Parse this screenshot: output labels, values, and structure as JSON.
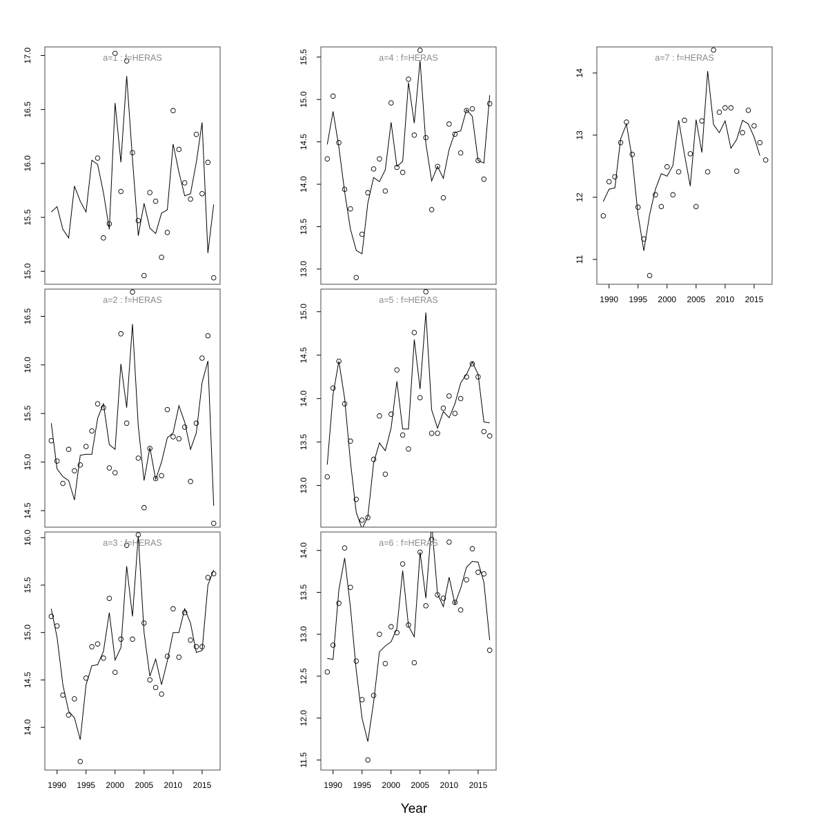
{
  "figure": {
    "x_axis_title": "Year"
  },
  "chart_data": [
    {
      "type": "line",
      "title": "a=1  :  f=HERAS",
      "ylim": [
        14.88,
        17.08
      ],
      "y_ticks": [
        15.0,
        15.5,
        16.0,
        16.5,
        17.0
      ],
      "x_ticks": [],
      "x": [
        1989,
        1990,
        1991,
        1992,
        1993,
        1994,
        1995,
        1996,
        1997,
        1998,
        1999,
        2000,
        2001,
        2002,
        2003,
        2004,
        2005,
        2006,
        2007,
        2008,
        2009,
        2010,
        2011,
        2012,
        2013,
        2014,
        2015,
        2016,
        2017
      ],
      "series": [
        {
          "role": "fitted",
          "values": [
            15.55,
            15.6,
            15.39,
            15.31,
            15.79,
            15.65,
            15.55,
            16.03,
            15.99,
            15.73,
            15.39,
            16.56,
            16.01,
            16.81,
            16.04,
            15.33,
            15.63,
            15.4,
            15.35,
            15.54,
            15.57,
            16.18,
            15.92,
            15.7,
            15.72,
            16.01,
            16.38,
            15.17,
            15.62
          ]
        },
        {
          "role": "observed",
          "values": [
            null,
            null,
            null,
            null,
            null,
            null,
            null,
            null,
            16.05,
            15.31,
            15.44,
            17.02,
            15.74,
            16.95,
            16.1,
            15.47,
            14.96,
            15.73,
            15.65,
            15.13,
            15.36,
            16.49,
            16.13,
            15.82,
            15.67,
            16.27,
            15.72,
            16.01,
            14.94
          ]
        }
      ]
    },
    {
      "type": "line",
      "title": "a=2  :  f=HERAS",
      "ylim": [
        14.33,
        16.78
      ],
      "y_ticks": [
        14.5,
        15.0,
        15.5,
        16.0,
        16.5
      ],
      "x_ticks": [],
      "x": [
        1989,
        1990,
        1991,
        1992,
        1993,
        1994,
        1995,
        1996,
        1997,
        1998,
        1999,
        2000,
        2001,
        2002,
        2003,
        2004,
        2005,
        2006,
        2007,
        2008,
        2009,
        2010,
        2011,
        2012,
        2013,
        2014,
        2015,
        2016,
        2017
      ],
      "series": [
        {
          "role": "fitted",
          "values": [
            15.4,
            14.93,
            14.85,
            14.81,
            14.61,
            15.07,
            15.08,
            15.08,
            15.45,
            15.6,
            15.18,
            15.13,
            16.01,
            15.56,
            16.42,
            15.37,
            14.81,
            15.15,
            14.82,
            15.0,
            15.25,
            15.3,
            15.58,
            15.41,
            15.13,
            15.3,
            15.82,
            16.04,
            14.55
          ]
        },
        {
          "role": "observed",
          "values": [
            15.22,
            15.01,
            14.78,
            15.13,
            14.91,
            14.97,
            15.16,
            15.32,
            15.6,
            15.56,
            14.94,
            14.89,
            16.32,
            15.4,
            16.75,
            15.04,
            14.53,
            15.14,
            14.83,
            14.86,
            15.54,
            15.26,
            15.24,
            15.36,
            14.8,
            15.4,
            16.07,
            16.3,
            14.37
          ]
        }
      ]
    },
    {
      "type": "line",
      "title": "a=3  :  f=HERAS",
      "ylim": [
        13.55,
        16.06
      ],
      "y_ticks": [
        14.0,
        14.5,
        15.0,
        15.5,
        16.0
      ],
      "x_ticks": [
        1990,
        1995,
        2000,
        2005,
        2010,
        2015
      ],
      "x": [
        1989,
        1990,
        1991,
        1992,
        1993,
        1994,
        1995,
        1996,
        1997,
        1998,
        1999,
        2000,
        2001,
        2002,
        2003,
        2004,
        2005,
        2006,
        2007,
        2008,
        2009,
        2010,
        2011,
        2012,
        2013,
        2014,
        2015,
        2016,
        2017
      ],
      "series": [
        {
          "role": "fitted",
          "values": [
            15.25,
            14.95,
            14.45,
            14.17,
            14.1,
            13.87,
            14.45,
            14.65,
            14.66,
            14.8,
            15.21,
            14.71,
            14.84,
            15.7,
            15.17,
            16.02,
            15.0,
            14.54,
            14.72,
            14.45,
            14.7,
            15.0,
            15.0,
            15.25,
            15.1,
            14.79,
            14.81,
            15.5,
            15.66
          ]
        },
        {
          "role": "observed",
          "values": [
            15.17,
            15.07,
            14.34,
            14.13,
            14.3,
            13.64,
            14.52,
            14.85,
            14.88,
            14.73,
            15.36,
            14.58,
            14.93,
            15.92,
            14.93,
            16.03,
            15.1,
            14.5,
            14.42,
            14.35,
            14.75,
            15.25,
            14.74,
            15.21,
            14.92,
            14.85,
            14.85,
            15.58,
            15.62
          ]
        }
      ]
    },
    {
      "type": "line",
      "title": "a=4  :  f=HERAS",
      "ylim": [
        12.82,
        15.62
      ],
      "y_ticks": [
        13.0,
        13.5,
        14.0,
        14.5,
        15.0,
        15.5
      ],
      "x_ticks": [],
      "x": [
        1989,
        1990,
        1991,
        1992,
        1993,
        1994,
        1995,
        1996,
        1997,
        1998,
        1999,
        2000,
        2001,
        2002,
        2003,
        2004,
        2005,
        2006,
        2007,
        2008,
        2009,
        2010,
        2011,
        2012,
        2013,
        2014,
        2015,
        2016,
        2017
      ],
      "series": [
        {
          "role": "fitted",
          "values": [
            14.47,
            14.86,
            14.44,
            13.91,
            13.47,
            13.22,
            13.18,
            13.78,
            14.08,
            14.03,
            14.17,
            14.73,
            14.21,
            14.27,
            15.2,
            14.72,
            15.46,
            14.48,
            14.04,
            14.21,
            14.07,
            14.41,
            14.61,
            14.63,
            14.88,
            14.8,
            14.28,
            14.25,
            15.05
          ]
        },
        {
          "role": "observed",
          "values": [
            14.3,
            15.04,
            14.49,
            13.94,
            13.71,
            12.9,
            13.41,
            13.9,
            14.18,
            14.3,
            13.92,
            14.96,
            14.2,
            14.14,
            15.24,
            14.58,
            15.58,
            14.55,
            13.7,
            14.21,
            13.84,
            14.71,
            14.59,
            14.37,
            14.87,
            14.89,
            14.28,
            14.06,
            14.95
          ]
        }
      ]
    },
    {
      "type": "line",
      "title": "a=5  :  f=HERAS",
      "ylim": [
        12.52,
        15.26
      ],
      "y_ticks": [
        13.0,
        13.5,
        14.0,
        14.5,
        15.0
      ],
      "x_ticks": [],
      "x": [
        1989,
        1990,
        1991,
        1992,
        1993,
        1994,
        1995,
        1996,
        1997,
        1998,
        1999,
        2000,
        2001,
        2002,
        2003,
        2004,
        2005,
        2006,
        2007,
        2008,
        2009,
        2010,
        2011,
        2012,
        2013,
        2014,
        2015,
        2016,
        2017
      ],
      "series": [
        {
          "role": "fitted",
          "values": [
            13.24,
            14.05,
            14.43,
            14.0,
            13.27,
            12.69,
            12.5,
            12.64,
            13.26,
            13.49,
            13.4,
            13.66,
            14.2,
            13.65,
            13.65,
            14.68,
            14.11,
            14.99,
            13.87,
            13.66,
            13.85,
            13.78,
            13.94,
            14.18,
            14.28,
            14.42,
            14.28,
            13.73,
            13.72
          ]
        },
        {
          "role": "observed",
          "values": [
            13.1,
            14.12,
            14.43,
            13.94,
            13.51,
            12.84,
            12.6,
            12.63,
            13.3,
            13.8,
            13.13,
            13.82,
            14.33,
            13.58,
            13.42,
            14.76,
            14.01,
            15.23,
            13.6,
            13.6,
            13.89,
            14.03,
            13.83,
            14.0,
            14.25,
            14.4,
            14.25,
            13.62,
            13.57
          ]
        }
      ]
    },
    {
      "type": "line",
      "title": "a=6  :  f=HERAS",
      "ylim": [
        11.38,
        14.22
      ],
      "y_ticks": [
        11.5,
        12.0,
        12.5,
        13.0,
        13.5,
        14.0
      ],
      "x_ticks": [
        1990,
        1995,
        2000,
        2005,
        2010,
        2015
      ],
      "x": [
        1989,
        1990,
        1991,
        1992,
        1993,
        1994,
        1995,
        1996,
        1997,
        1998,
        1999,
        2000,
        2001,
        2002,
        2003,
        2004,
        2005,
        2006,
        2007,
        2008,
        2009,
        2010,
        2011,
        2012,
        2013,
        2014,
        2015,
        2016,
        2017
      ],
      "series": [
        {
          "role": "fitted",
          "values": [
            12.71,
            12.7,
            13.53,
            13.91,
            13.32,
            12.57,
            12.0,
            11.72,
            12.19,
            12.79,
            12.86,
            12.91,
            13.07,
            13.76,
            13.1,
            12.97,
            13.98,
            13.43,
            14.32,
            13.48,
            13.33,
            13.68,
            13.36,
            13.55,
            13.8,
            13.87,
            13.86,
            13.62,
            12.93
          ]
        },
        {
          "role": "observed",
          "values": [
            12.55,
            12.87,
            13.37,
            14.03,
            13.56,
            12.68,
            12.22,
            11.5,
            12.27,
            13.0,
            12.65,
            13.09,
            13.02,
            13.84,
            13.11,
            12.66,
            13.98,
            13.34,
            14.13,
            13.47,
            13.43,
            14.1,
            13.38,
            13.29,
            13.65,
            14.02,
            13.74,
            13.72,
            12.81
          ]
        }
      ]
    },
    {
      "type": "line",
      "title": "a=7  :  f=HERAS",
      "ylim": [
        10.6,
        14.42
      ],
      "y_ticks": [
        11,
        12,
        13,
        14
      ],
      "x_ticks": [
        1990,
        1995,
        2000,
        2005,
        2010,
        2015
      ],
      "x": [
        1989,
        1990,
        1991,
        1992,
        1993,
        1994,
        1995,
        1996,
        1997,
        1998,
        1999,
        2000,
        2001,
        2002,
        2003,
        2004,
        2005,
        2006,
        2007,
        2008,
        2009,
        2010,
        2011,
        2012,
        2013,
        2014,
        2015,
        2016,
        2017
      ],
      "series": [
        {
          "role": "fitted",
          "values": [
            11.93,
            12.13,
            12.15,
            12.94,
            13.18,
            12.62,
            11.72,
            11.14,
            11.72,
            12.13,
            12.38,
            12.34,
            12.51,
            13.24,
            12.69,
            12.18,
            13.25,
            12.72,
            14.03,
            13.17,
            13.04,
            13.23,
            12.79,
            12.93,
            13.24,
            13.18,
            12.97,
            12.67,
            null
          ]
        },
        {
          "role": "observed",
          "values": [
            11.7,
            12.25,
            12.33,
            12.88,
            13.21,
            12.69,
            11.84,
            11.33,
            10.74,
            12.04,
            11.85,
            12.49,
            12.04,
            12.41,
            13.24,
            12.7,
            11.85,
            13.23,
            12.41,
            14.37,
            13.37,
            13.44,
            13.44,
            12.42,
            13.04,
            13.4,
            13.15,
            12.88,
            12.6
          ]
        }
      ]
    }
  ]
}
